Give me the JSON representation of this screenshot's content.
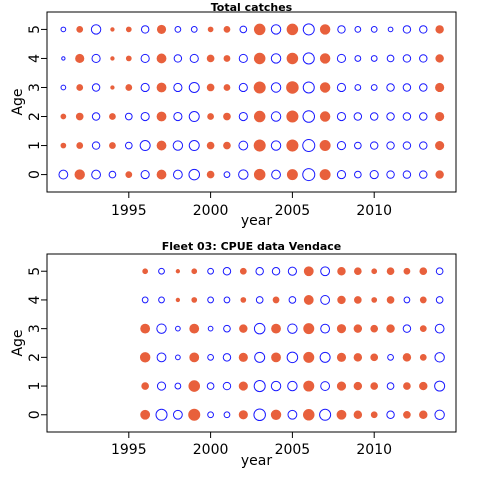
{
  "chart_data": [
    {
      "type": "scatter",
      "title": "Total catches",
      "xlabel": "year",
      "ylabel": "Age",
      "xlim": [
        1990,
        2015
      ],
      "ylim": [
        -0.6,
        5.6
      ],
      "xticks": [
        1995,
        2000,
        2005,
        2010
      ],
      "yticks": [
        0,
        1,
        2,
        3,
        4,
        5
      ],
      "colors": {
        "positive": "#e8603c",
        "negative": "#1a1aff"
      },
      "marker_note_values": "signed residual magnitude per age-year cell; positive = filled orange, negative = open blue",
      "years": [
        1991,
        1992,
        1993,
        1994,
        1995,
        1996,
        1997,
        1998,
        1999,
        2000,
        2001,
        2002,
        2003,
        2004,
        2005,
        2006,
        2007,
        2008,
        2009,
        2010,
        2011,
        2012,
        2013,
        2014
      ],
      "residuals": {
        "5": [
          -0.2,
          0.3,
          -0.8,
          0.1,
          0.2,
          -0.5,
          0.6,
          -0.3,
          -0.3,
          0.2,
          0.3,
          -0.4,
          1.0,
          -0.8,
          1.0,
          -1.1,
          0.8,
          -0.5,
          -0.3,
          -0.3,
          -0.2,
          -0.5,
          -0.5,
          0.5
        ],
        "4": [
          -0.1,
          0.6,
          -0.6,
          0.1,
          0.2,
          -0.6,
          0.7,
          -0.5,
          -0.6,
          0.4,
          0.3,
          -0.6,
          1.0,
          -0.8,
          1.0,
          -1.1,
          0.8,
          -0.6,
          -0.3,
          -0.3,
          -0.4,
          -0.5,
          -0.5,
          0.5
        ],
        "3": [
          -0.2,
          0.3,
          -0.5,
          0.1,
          0.3,
          -0.6,
          0.7,
          -0.6,
          -0.9,
          0.4,
          0.3,
          -0.6,
          1.1,
          -0.8,
          1.2,
          -1.1,
          0.8,
          -0.6,
          -0.3,
          -0.3,
          -0.5,
          -0.5,
          -0.5,
          0.6
        ],
        "2": [
          0.2,
          0.4,
          -0.5,
          0.3,
          -0.4,
          -0.6,
          0.7,
          -0.6,
          -0.9,
          0.3,
          0.4,
          -0.6,
          1.0,
          -0.8,
          1.1,
          -1.2,
          0.8,
          -0.6,
          -0.5,
          -0.5,
          -0.5,
          -0.5,
          -0.5,
          0.6
        ],
        "1": [
          0.2,
          0.3,
          -0.5,
          0.3,
          -0.4,
          -0.9,
          0.7,
          -0.8,
          -0.9,
          0.4,
          0.4,
          -0.7,
          1.1,
          -0.8,
          1.1,
          -1.3,
          0.9,
          -0.6,
          -0.4,
          -0.5,
          -0.5,
          -0.5,
          -0.5,
          0.6
        ],
        "0": [
          -0.7,
          0.8,
          -0.7,
          -0.4,
          0.3,
          -0.6,
          0.7,
          -0.7,
          -1.0,
          0.4,
          -0.3,
          -0.8,
          1.0,
          -0.7,
          0.9,
          -1.3,
          0.9,
          -0.6,
          -0.4,
          -0.6,
          -0.5,
          -0.5,
          -0.5,
          0.5
        ]
      }
    },
    {
      "type": "scatter",
      "title": "Fleet 03:  CPUE data Vendace",
      "xlabel": "year",
      "ylabel": "Age",
      "xlim": [
        1990,
        2015
      ],
      "ylim": [
        -0.6,
        5.6
      ],
      "xticks": [
        1995,
        2000,
        2005,
        2010
      ],
      "yticks": [
        0,
        1,
        2,
        3,
        4,
        5
      ],
      "colors": {
        "positive": "#e8603c",
        "negative": "#1a1aff"
      },
      "marker_note_values": "signed residual magnitude per age-year cell; positive = filled orange, negative = open blue",
      "years": [
        1996,
        1997,
        1998,
        1999,
        2000,
        2001,
        2002,
        2003,
        2004,
        2005,
        2006,
        2007,
        2008,
        2009,
        2010,
        2011,
        2012,
        2013,
        2014
      ],
      "residuals": {
        "5": [
          0.2,
          -0.3,
          0.1,
          0.2,
          -0.3,
          -0.5,
          0.3,
          -0.5,
          -0.5,
          -0.6,
          0.7,
          -0.7,
          0.5,
          0.4,
          0.2,
          0.4,
          0.3,
          0.4,
          -0.4
        ],
        "4": [
          -0.3,
          -0.3,
          0.1,
          0.2,
          -0.3,
          -0.3,
          0.2,
          -0.4,
          0.3,
          -0.4,
          0.7,
          -0.7,
          0.5,
          0.4,
          0.2,
          0.4,
          -0.3,
          0.3,
          -0.4
        ],
        "3": [
          0.7,
          -0.8,
          -0.2,
          0.7,
          -0.2,
          -0.4,
          0.5,
          -1.0,
          0.7,
          -0.8,
          0.9,
          -0.7,
          0.6,
          0.5,
          0.4,
          0.5,
          -0.5,
          0.3,
          -0.7
        ],
        "2": [
          0.8,
          -0.7,
          -0.2,
          0.7,
          -0.3,
          -0.5,
          0.6,
          -0.9,
          0.7,
          -1.0,
          0.9,
          -0.9,
          0.6,
          0.5,
          0.4,
          -0.3,
          0.5,
          0.3,
          -0.8
        ],
        "1": [
          0.4,
          -0.6,
          -0.3,
          1.0,
          -0.4,
          -0.5,
          0.6,
          -1.1,
          -0.8,
          -0.8,
          0.9,
          -0.7,
          0.6,
          0.5,
          0.4,
          -0.4,
          0.4,
          0.5,
          -0.9
        ],
        "0": [
          0.7,
          -1.1,
          -0.7,
          1.1,
          -0.3,
          -0.3,
          0.6,
          -1.2,
          0.8,
          -0.7,
          1.0,
          -1.1,
          0.7,
          0.5,
          0.3,
          -0.5,
          0.4,
          0.5,
          -0.8
        ]
      }
    }
  ]
}
